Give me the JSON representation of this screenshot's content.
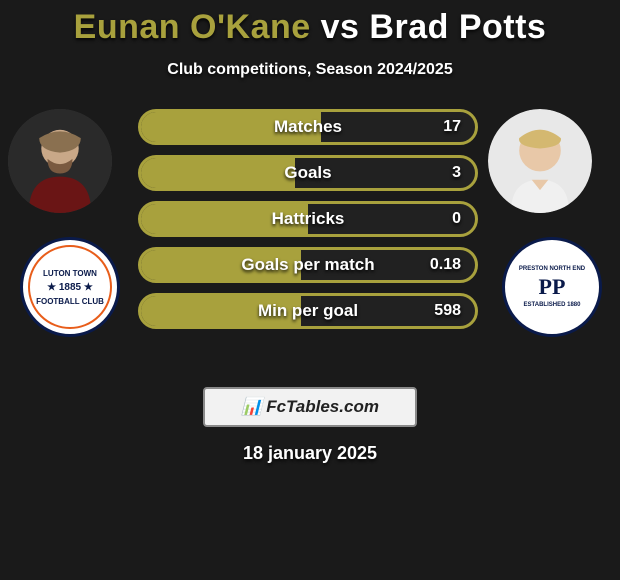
{
  "title": {
    "player1": "Eunan O'Kane",
    "vs": "vs",
    "player2": "Brad Potts",
    "player1_color": "#a8a13d",
    "player2_color": "#ffffff",
    "fontsize": 34
  },
  "subtitle": "Club competitions, Season 2024/2025",
  "bars": {
    "border_color": "#a8a13d",
    "fill_color": "#a8a13d",
    "height": 36,
    "items": [
      {
        "label": "Matches",
        "value": "17",
        "fill_pct": 54
      },
      {
        "label": "Goals",
        "value": "3",
        "fill_pct": 46
      },
      {
        "label": "Hattricks",
        "value": "0",
        "fill_pct": 50
      },
      {
        "label": "Goals per match",
        "value": "0.18",
        "fill_pct": 48
      },
      {
        "label": "Min per goal",
        "value": "598",
        "fill_pct": 48
      }
    ]
  },
  "clubs": {
    "left": {
      "line1": "LUTON TOWN",
      "line2": "★ 1885 ★",
      "line3": "FOOTBALL CLUB",
      "bg_color": "#ffffff",
      "border_color": "#0a1a4a",
      "accent_color": "#e85d1a"
    },
    "right": {
      "line1": "PRESTON NORTH END",
      "line2": "PP",
      "line3": "ESTABLISHED 1880",
      "bg_color": "#ffffff",
      "border_color": "#0a1a4a"
    }
  },
  "avatars": {
    "left_bg": "#3a3a3a",
    "right_bg": "#3a3a3a"
  },
  "logo": {
    "icon": "📊",
    "text": "FcTables.com",
    "bg_color": "#f2f2f2",
    "border_color": "#8a8a8a"
  },
  "date": "18 january 2025",
  "page_bg": "#1a1a1a"
}
